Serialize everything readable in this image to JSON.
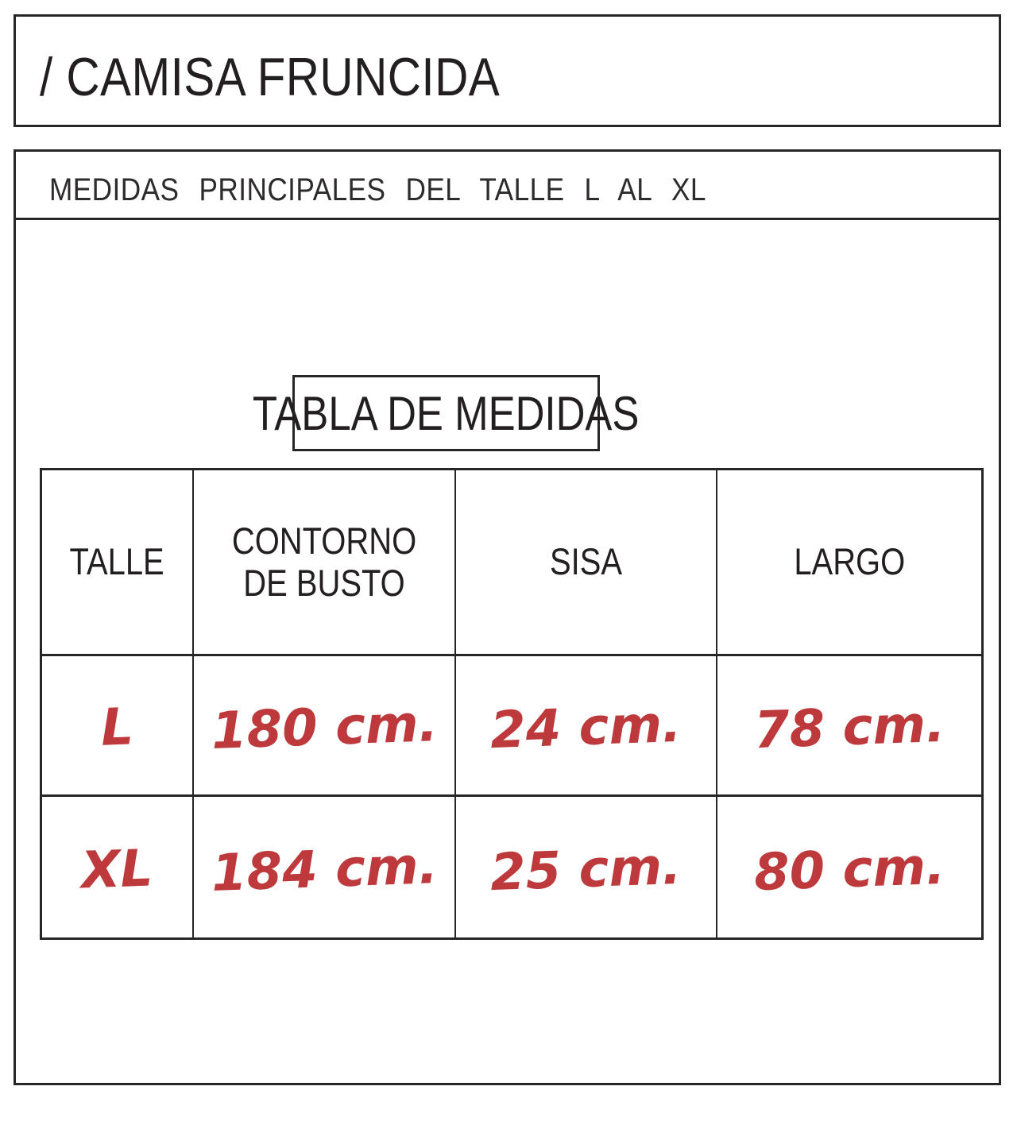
{
  "doc": {
    "title": "/ CAMISA FRUNCIDA",
    "subtitle": "MEDIDAS PRINCIPALES DEL TALLE L AL XL"
  },
  "size_chart": {
    "box_title": "TABLA DE MEDIDAS",
    "columns": [
      "TALLE",
      "CONTORNO DE BUSTO",
      "SISA",
      "LARGO"
    ],
    "rows": [
      {
        "talle": "L",
        "contorno_de_busto": "180 cm.",
        "sisa": "24 cm.",
        "largo": "78 cm."
      },
      {
        "talle": "XL",
        "contorno_de_busto": "184 cm.",
        "sisa": "25 cm.",
        "largo": "80 cm."
      }
    ]
  },
  "colors": {
    "handwritten_red": "#bd393c",
    "line_black": "#262626"
  }
}
